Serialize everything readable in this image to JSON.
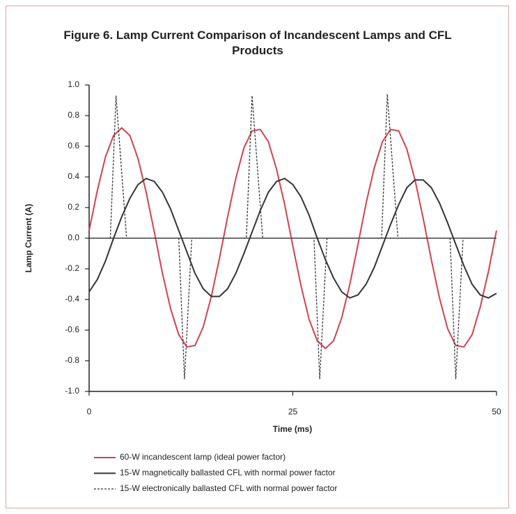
{
  "chart_data": {
    "type": "line",
    "title": "Figure 6. Lamp Current Comparison of Incandescent Lamps and CFL Products",
    "xlabel": "Time (ms)",
    "ylabel": "Lamp Current (A)",
    "xlim": [
      0,
      50
    ],
    "xticks": [
      0,
      25,
      50
    ],
    "ylim": [
      -1,
      1
    ],
    "yticks": [
      {
        "value": -1,
        "label": "-1.0"
      },
      -0.8,
      -0.6,
      -0.4,
      -0.2,
      {
        "value": 0,
        "label": "0.0"
      },
      0.2,
      0.4,
      0.6,
      0.8,
      {
        "value": 1,
        "label": "1.0"
      }
    ],
    "series": [
      {
        "name": "60-W incandescent lamp (ideal power factor)",
        "color": "#d0424e",
        "style": "solid",
        "x": [
          0,
          1,
          2,
          3,
          4,
          5,
          6,
          7,
          8,
          9,
          10,
          11,
          12,
          13,
          14,
          15,
          16,
          17,
          18,
          19,
          20,
          21,
          22,
          23,
          24,
          25,
          26,
          27,
          28,
          29,
          30,
          31,
          32,
          33,
          34,
          35,
          36,
          37,
          38,
          39,
          40,
          41,
          42,
          43,
          44,
          45,
          46,
          47,
          48,
          49,
          50
        ],
        "values": [
          0.05,
          0.31,
          0.53,
          0.67,
          0.72,
          0.67,
          0.52,
          0.3,
          0.04,
          -0.23,
          -0.46,
          -0.63,
          -0.71,
          -0.7,
          -0.58,
          -0.38,
          -0.13,
          0.14,
          0.39,
          0.59,
          0.7,
          0.71,
          0.63,
          0.45,
          0.22,
          -0.05,
          -0.31,
          -0.53,
          -0.67,
          -0.72,
          -0.67,
          -0.52,
          -0.3,
          -0.04,
          0.23,
          0.46,
          0.63,
          0.71,
          0.7,
          0.58,
          0.38,
          0.13,
          -0.14,
          -0.39,
          -0.59,
          -0.7,
          -0.71,
          -0.63,
          -0.45,
          -0.22,
          0.05
        ]
      },
      {
        "name": "15-W magnetically ballasted CFL with normal power factor",
        "color": "#333333",
        "style": "solid",
        "x": [
          0,
          1,
          2,
          3,
          4,
          5,
          6,
          7,
          8,
          9,
          10,
          11,
          12,
          13,
          14,
          15,
          16,
          17,
          18,
          19,
          20,
          21,
          22,
          23,
          24,
          25,
          26,
          27,
          28,
          29,
          30,
          31,
          32,
          33,
          34,
          35,
          36,
          37,
          38,
          39,
          40,
          41,
          42,
          43,
          44,
          45,
          46,
          47,
          48,
          49,
          50
        ],
        "values": [
          -0.35,
          -0.27,
          -0.15,
          0.0,
          0.14,
          0.26,
          0.35,
          0.39,
          0.37,
          0.3,
          0.19,
          0.05,
          -0.09,
          -0.23,
          -0.33,
          -0.38,
          -0.38,
          -0.33,
          -0.23,
          -0.1,
          0.04,
          0.18,
          0.3,
          0.37,
          0.39,
          0.35,
          0.27,
          0.15,
          0.0,
          -0.14,
          -0.26,
          -0.35,
          -0.39,
          -0.37,
          -0.3,
          -0.19,
          -0.05,
          0.09,
          0.22,
          0.33,
          0.38,
          0.38,
          0.33,
          0.23,
          0.1,
          -0.04,
          -0.18,
          -0.3,
          -0.37,
          -0.39,
          -0.36
        ]
      },
      {
        "name": "15-W electronically ballasted CFL with normal power factor",
        "color": "#333333",
        "style": "dashed",
        "x": [
          0,
          2.6,
          3.3,
          4.6,
          11.0,
          11.7,
          12.6,
          19.3,
          20.0,
          21.3,
          27.6,
          28.3,
          29.2,
          35.9,
          36.6,
          37.9,
          44.3,
          45.0,
          45.9,
          50
        ],
        "values": [
          0,
          0,
          0.93,
          0,
          0,
          -0.92,
          0,
          0,
          0.93,
          0,
          0,
          -0.92,
          0,
          0,
          0.94,
          0,
          0,
          -0.92,
          0,
          0
        ]
      }
    ]
  }
}
